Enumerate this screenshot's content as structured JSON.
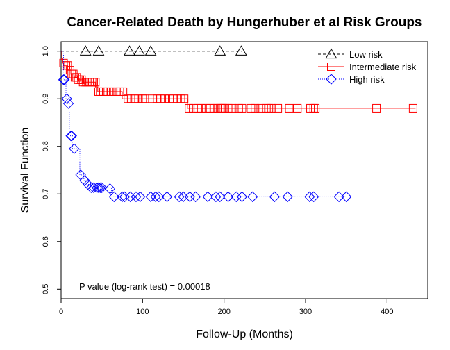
{
  "chart_data": {
    "type": "line",
    "title": "Cancer-Related Death by Hungerhuber et al Risk Groups",
    "xlabel": "Follow-Up (Months)",
    "ylabel": "Survival Function",
    "xlim": [
      0,
      450
    ],
    "ylim": [
      0.48,
      1.02
    ],
    "x_ticks": [
      0,
      100,
      200,
      300,
      400
    ],
    "y_ticks": [
      0.5,
      0.6,
      0.7,
      0.8,
      0.9,
      1.0
    ],
    "x_tick_labels": [
      "0",
      "100",
      "200",
      "300",
      "400"
    ],
    "y_tick_labels": [
      "0.5",
      "0.6",
      "0.7",
      "0.8",
      "0.9",
      "1.0"
    ],
    "grid": false,
    "legend_position": "top-right",
    "annotation": "P value (log-rank test) = 0.00018",
    "series": [
      {
        "name": "Low risk",
        "color": "#000000",
        "line_style": "dashed",
        "marker": "triangle",
        "steps": [
          [
            0,
            1.0
          ],
          [
            222,
            1.0
          ]
        ],
        "censor_x": [
          30,
          46,
          84,
          96,
          110,
          195,
          221
        ],
        "censor_y": [
          1.0,
          1.0,
          1.0,
          1.0,
          1.0,
          1.0,
          1.0
        ]
      },
      {
        "name": "Intermediate risk",
        "color": "#ff0000",
        "line_style": "solid",
        "marker": "square",
        "steps": [
          [
            0,
            1.0
          ],
          [
            1,
            0.985
          ],
          [
            2,
            0.975
          ],
          [
            3,
            0.97
          ],
          [
            8,
            0.96
          ],
          [
            12,
            0.952
          ],
          [
            16,
            0.945
          ],
          [
            20,
            0.94
          ],
          [
            28,
            0.935
          ],
          [
            42,
            0.925
          ],
          [
            45,
            0.915
          ],
          [
            75,
            0.9
          ],
          [
            155,
            0.88
          ],
          [
            435,
            0.88
          ]
        ],
        "censor_x": [
          3,
          6,
          8,
          11,
          13,
          15,
          17,
          19,
          21,
          23,
          25,
          27,
          29,
          31,
          33,
          35,
          38,
          40,
          42,
          46,
          48,
          52,
          56,
          60,
          64,
          68,
          72,
          76,
          82,
          86,
          90,
          95,
          100,
          103,
          112,
          118,
          122,
          127,
          133,
          138,
          143,
          147,
          151,
          157,
          162,
          168,
          172,
          178,
          183,
          188,
          192,
          195,
          197,
          199,
          201,
          205,
          210,
          218,
          222,
          233,
          238,
          245,
          252,
          255,
          258,
          266,
          280,
          290,
          306,
          310,
          312,
          387,
          432
        ],
        "censor_y": [
          0.975,
          0.97,
          0.97,
          0.96,
          0.952,
          0.952,
          0.945,
          0.945,
          0.94,
          0.94,
          0.94,
          0.935,
          0.935,
          0.935,
          0.935,
          0.935,
          0.935,
          0.935,
          0.935,
          0.915,
          0.915,
          0.915,
          0.915,
          0.915,
          0.915,
          0.915,
          0.915,
          0.915,
          0.9,
          0.9,
          0.9,
          0.9,
          0.9,
          0.9,
          0.9,
          0.9,
          0.9,
          0.9,
          0.9,
          0.9,
          0.9,
          0.9,
          0.9,
          0.88,
          0.88,
          0.88,
          0.88,
          0.88,
          0.88,
          0.88,
          0.88,
          0.88,
          0.88,
          0.88,
          0.88,
          0.88,
          0.88,
          0.88,
          0.88,
          0.88,
          0.88,
          0.88,
          0.88,
          0.88,
          0.88,
          0.88,
          0.88,
          0.88,
          0.88,
          0.88,
          0.88,
          0.88,
          0.88
        ]
      },
      {
        "name": "High risk",
        "color": "#0000ff",
        "line_style": "dotted",
        "marker": "diamond",
        "steps": [
          [
            0,
            1.0
          ],
          [
            3,
            0.94
          ],
          [
            6,
            0.9
          ],
          [
            8,
            0.89
          ],
          [
            10,
            0.822
          ],
          [
            14,
            0.795
          ],
          [
            23,
            0.74
          ],
          [
            28,
            0.728
          ],
          [
            32,
            0.72
          ],
          [
            37,
            0.713
          ],
          [
            62,
            0.694
          ],
          [
            350,
            0.694
          ]
        ],
        "censor_x": [
          3,
          4,
          7,
          9,
          12,
          13,
          16,
          24,
          29,
          33,
          37,
          40,
          44,
          46,
          48,
          50,
          60,
          65,
          75,
          78,
          85,
          92,
          97,
          110,
          116,
          120,
          130,
          145,
          150,
          158,
          165,
          180,
          190,
          195,
          205,
          215,
          222,
          235,
          262,
          278,
          305,
          310,
          341,
          350
        ],
        "censor_y": [
          0.94,
          0.94,
          0.9,
          0.89,
          0.822,
          0.822,
          0.795,
          0.74,
          0.728,
          0.72,
          0.713,
          0.713,
          0.713,
          0.713,
          0.713,
          0.713,
          0.711,
          0.694,
          0.694,
          0.694,
          0.694,
          0.694,
          0.694,
          0.694,
          0.694,
          0.694,
          0.694,
          0.694,
          0.694,
          0.694,
          0.694,
          0.694,
          0.694,
          0.694,
          0.694,
          0.694,
          0.694,
          0.694,
          0.694,
          0.694,
          0.694,
          0.694,
          0.694,
          0.694
        ]
      }
    ]
  }
}
